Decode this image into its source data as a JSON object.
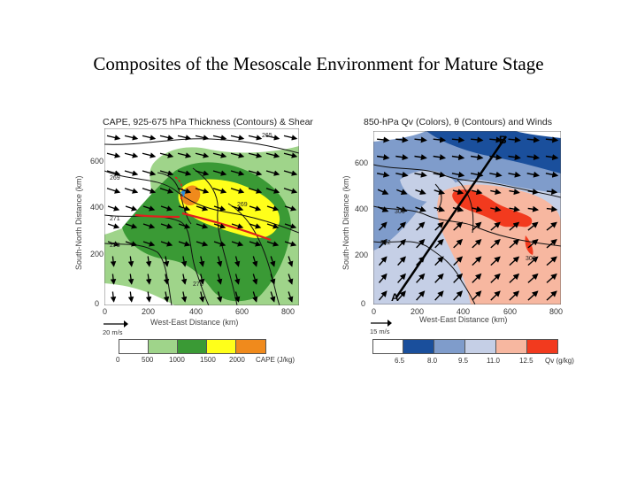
{
  "slide": {
    "title": "Composites of the Mesoscale Environment for Mature Stage"
  },
  "left_panel": {
    "title": "CAPE, 925-675 hPa Thickness (Contours) & Shear",
    "xlabel": "West-East Distance (km)",
    "ylabel": "South-North Distance (km)",
    "x_ticks": [
      "0",
      "200",
      "400",
      "600",
      "800"
    ],
    "y_ticks": [
      "0",
      "200",
      "400",
      "600"
    ],
    "contour_labels": [
      "265",
      "269",
      "271",
      "273",
      "271",
      "269"
    ],
    "vector_scale": "20 m/s",
    "colorbar": {
      "labels": [
        "0",
        "500",
        "1000",
        "1500",
        "2000"
      ],
      "units": "CAPE (J/kg)",
      "colors": [
        "#ffffff",
        "#9fd48a",
        "#3a9a35",
        "#ffff1a",
        "#f08a1c"
      ]
    }
  },
  "right_panel": {
    "title": "850-hPa Qv (Colors), θ (Contours) and Winds",
    "xlabel": "West-East Distance (km)",
    "ylabel": "South-North Distance (km)",
    "x_ticks": [
      "0",
      "200",
      "400",
      "600",
      "800"
    ],
    "y_ticks": [
      "0",
      "200",
      "400",
      "600"
    ],
    "contour_labels": [
      "306",
      "312",
      "308"
    ],
    "section_start": "A",
    "section_end": "B",
    "vector_scale": "15 m/s",
    "colorbar": {
      "labels": [
        "6.5",
        "8.0",
        "9.5",
        "11.0",
        "12.5"
      ],
      "units": "Qv (g/kg)",
      "colors": [
        "#ffffff",
        "#1a4f9c",
        "#7f9ccb",
        "#c5cfe6",
        "#f7b7a0",
        "#f23a1e"
      ]
    }
  }
}
